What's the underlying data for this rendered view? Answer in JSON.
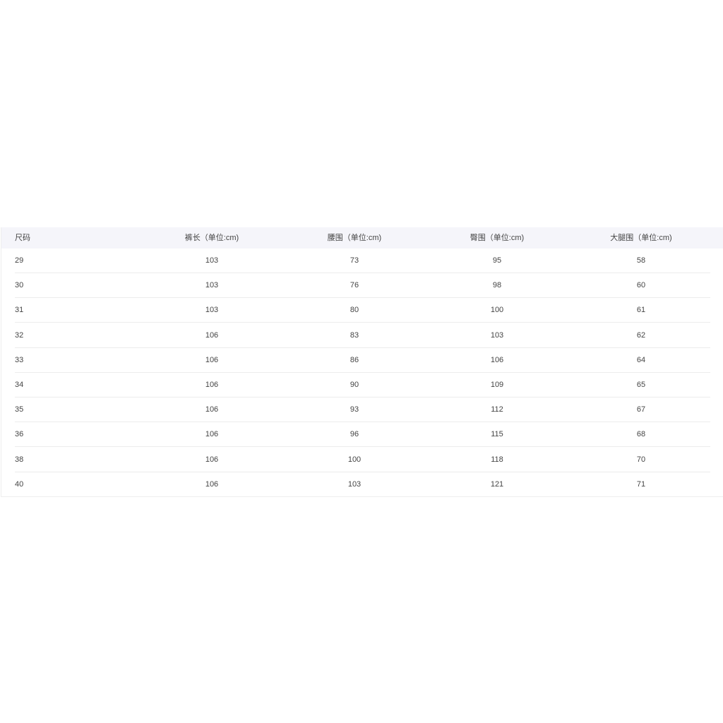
{
  "table": {
    "headers": [
      "尺码",
      "裤长（单位:cm)",
      "腰围（单位:cm)",
      "臀围（单位:cm)",
      "大腿围（单位:cm)"
    ],
    "rows": [
      [
        "29",
        "103",
        "73",
        "95",
        "58"
      ],
      [
        "30",
        "103",
        "76",
        "98",
        "60"
      ],
      [
        "31",
        "103",
        "80",
        "100",
        "61"
      ],
      [
        "32",
        "106",
        "83",
        "103",
        "62"
      ],
      [
        "33",
        "106",
        "86",
        "106",
        "64"
      ],
      [
        "34",
        "106",
        "90",
        "109",
        "65"
      ],
      [
        "35",
        "106",
        "93",
        "112",
        "67"
      ],
      [
        "36",
        "106",
        "96",
        "115",
        "68"
      ],
      [
        "38",
        "106",
        "100",
        "118",
        "70"
      ],
      [
        "40",
        "106",
        "103",
        "121",
        "71"
      ]
    ]
  }
}
